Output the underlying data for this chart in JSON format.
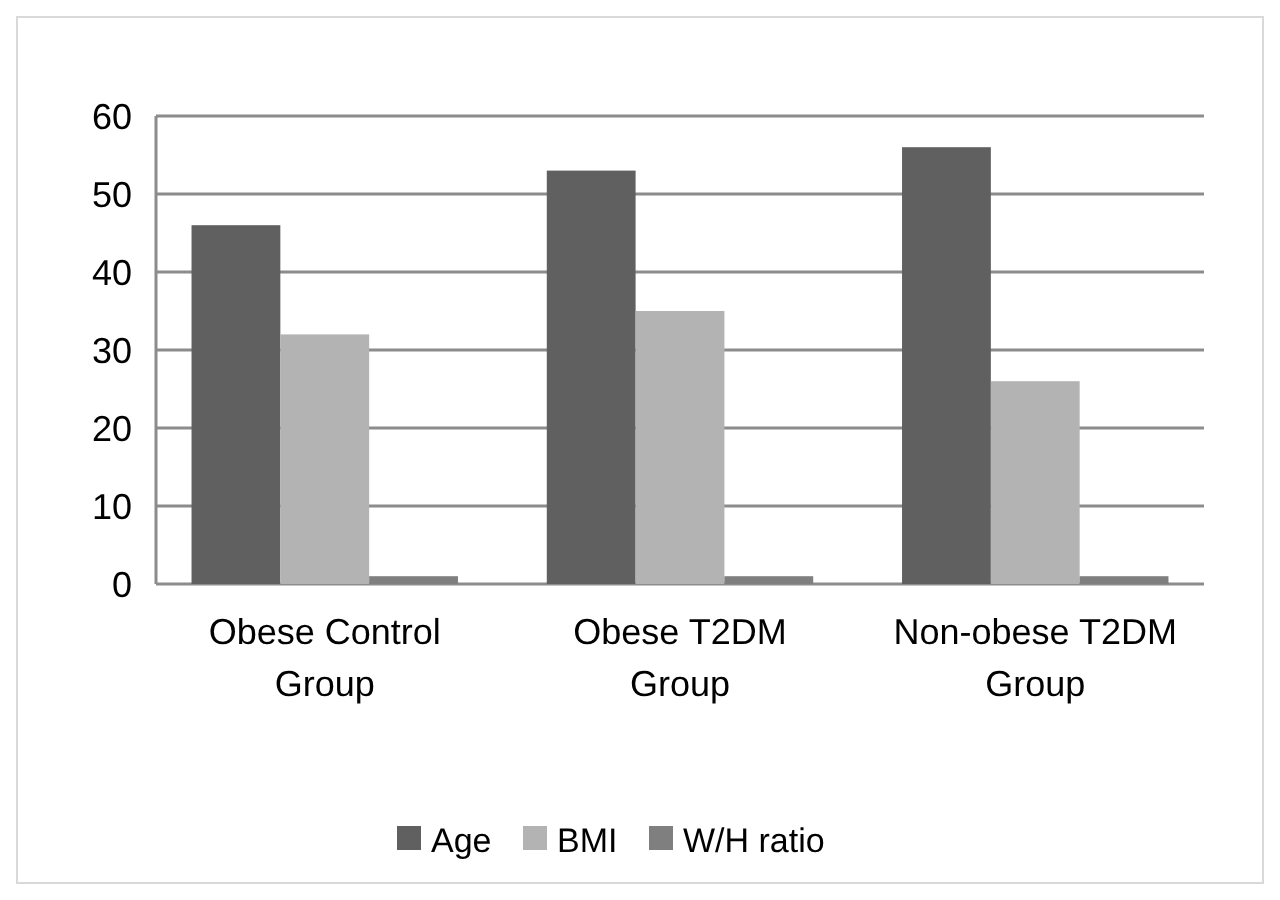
{
  "chart_data": {
    "type": "bar",
    "categories": [
      "Obese Control Group",
      "Obese T2DM Group",
      "Non-obese T2DM Group"
    ],
    "series": [
      {
        "name": "Age",
        "color": "#606060",
        "values": [
          46,
          53,
          56
        ]
      },
      {
        "name": "BMI",
        "color": "#b3b3b3",
        "values": [
          32,
          35,
          26
        ]
      },
      {
        "name": "W/H ratio",
        "color": "#7f7f7f",
        "values": [
          1,
          1,
          1
        ]
      }
    ],
    "ylim": [
      0,
      60
    ],
    "yticks": [
      0,
      10,
      20,
      30,
      40,
      50,
      60
    ],
    "grid": "y",
    "legend": "bottom"
  }
}
